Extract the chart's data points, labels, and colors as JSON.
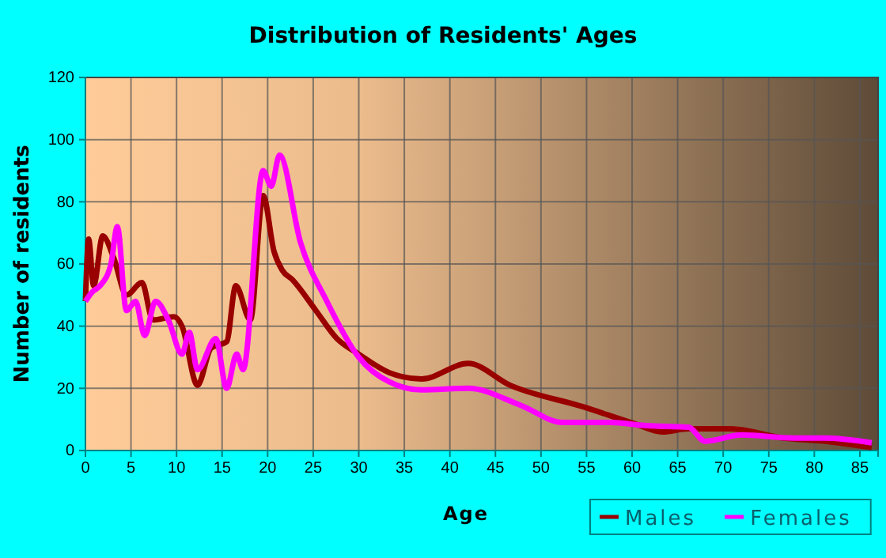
{
  "chart_data": {
    "type": "line",
    "title": "Distribution of Residents' Ages",
    "xlabel": "Age",
    "ylabel": "Number of residents",
    "xlim": [
      0,
      87
    ],
    "xticks": [
      0,
      5,
      10,
      15,
      20,
      25,
      30,
      35,
      40,
      45,
      50,
      55,
      60,
      65,
      70,
      75,
      80,
      85
    ],
    "ylim": [
      0,
      120
    ],
    "yticks": [
      0,
      20,
      40,
      60,
      80,
      100,
      120
    ],
    "grid": true,
    "legend": "bottom",
    "series": [
      {
        "name": "Males",
        "color": "#990000",
        "x": [
          0,
          0.35,
          0.9,
          1.9,
          3.1,
          4.5,
          6.2,
          7.4,
          9.7,
          10.6,
          12.3,
          13.8,
          15.5,
          16.5,
          18.1,
          19.5,
          20.7,
          21.6,
          22.7,
          25.3,
          27.6,
          30,
          33.4,
          36.9,
          42,
          46.6,
          54.7,
          60.4,
          63.3,
          66.2,
          70.8,
          76.6,
          81.1,
          86.3
        ],
        "values": [
          48,
          68,
          53,
          69,
          62,
          50,
          54,
          42,
          43,
          40,
          21,
          33,
          35,
          53,
          42,
          82,
          64,
          58,
          55,
          45,
          36,
          31,
          25,
          23,
          28,
          21,
          14,
          8.5,
          6,
          7,
          7,
          4,
          3,
          1
        ]
      },
      {
        "name": "Females",
        "color": "#ff00ff",
        "x": [
          0,
          0.75,
          1.6,
          2.8,
          3.5,
          4.5,
          5.5,
          6.5,
          7.7,
          9.1,
          10.6,
          11.4,
          12.3,
          14.3,
          15.5,
          16.6,
          17.3,
          19.5,
          20.4,
          21.3,
          23.6,
          26.5,
          30,
          33.4,
          36.9,
          42,
          47.8,
          52.4,
          57.6,
          61.6,
          66.2,
          68,
          72,
          77.7,
          81.1,
          86.3
        ],
        "values": [
          48,
          51,
          53,
          60,
          72,
          45,
          48,
          37,
          48,
          42,
          31,
          38,
          26,
          36,
          20,
          31,
          26,
          90,
          85,
          95,
          67,
          48,
          30,
          22,
          19.5,
          20,
          14.5,
          9,
          9,
          8,
          7.5,
          3,
          5,
          4,
          4,
          2.5
        ]
      }
    ]
  }
}
